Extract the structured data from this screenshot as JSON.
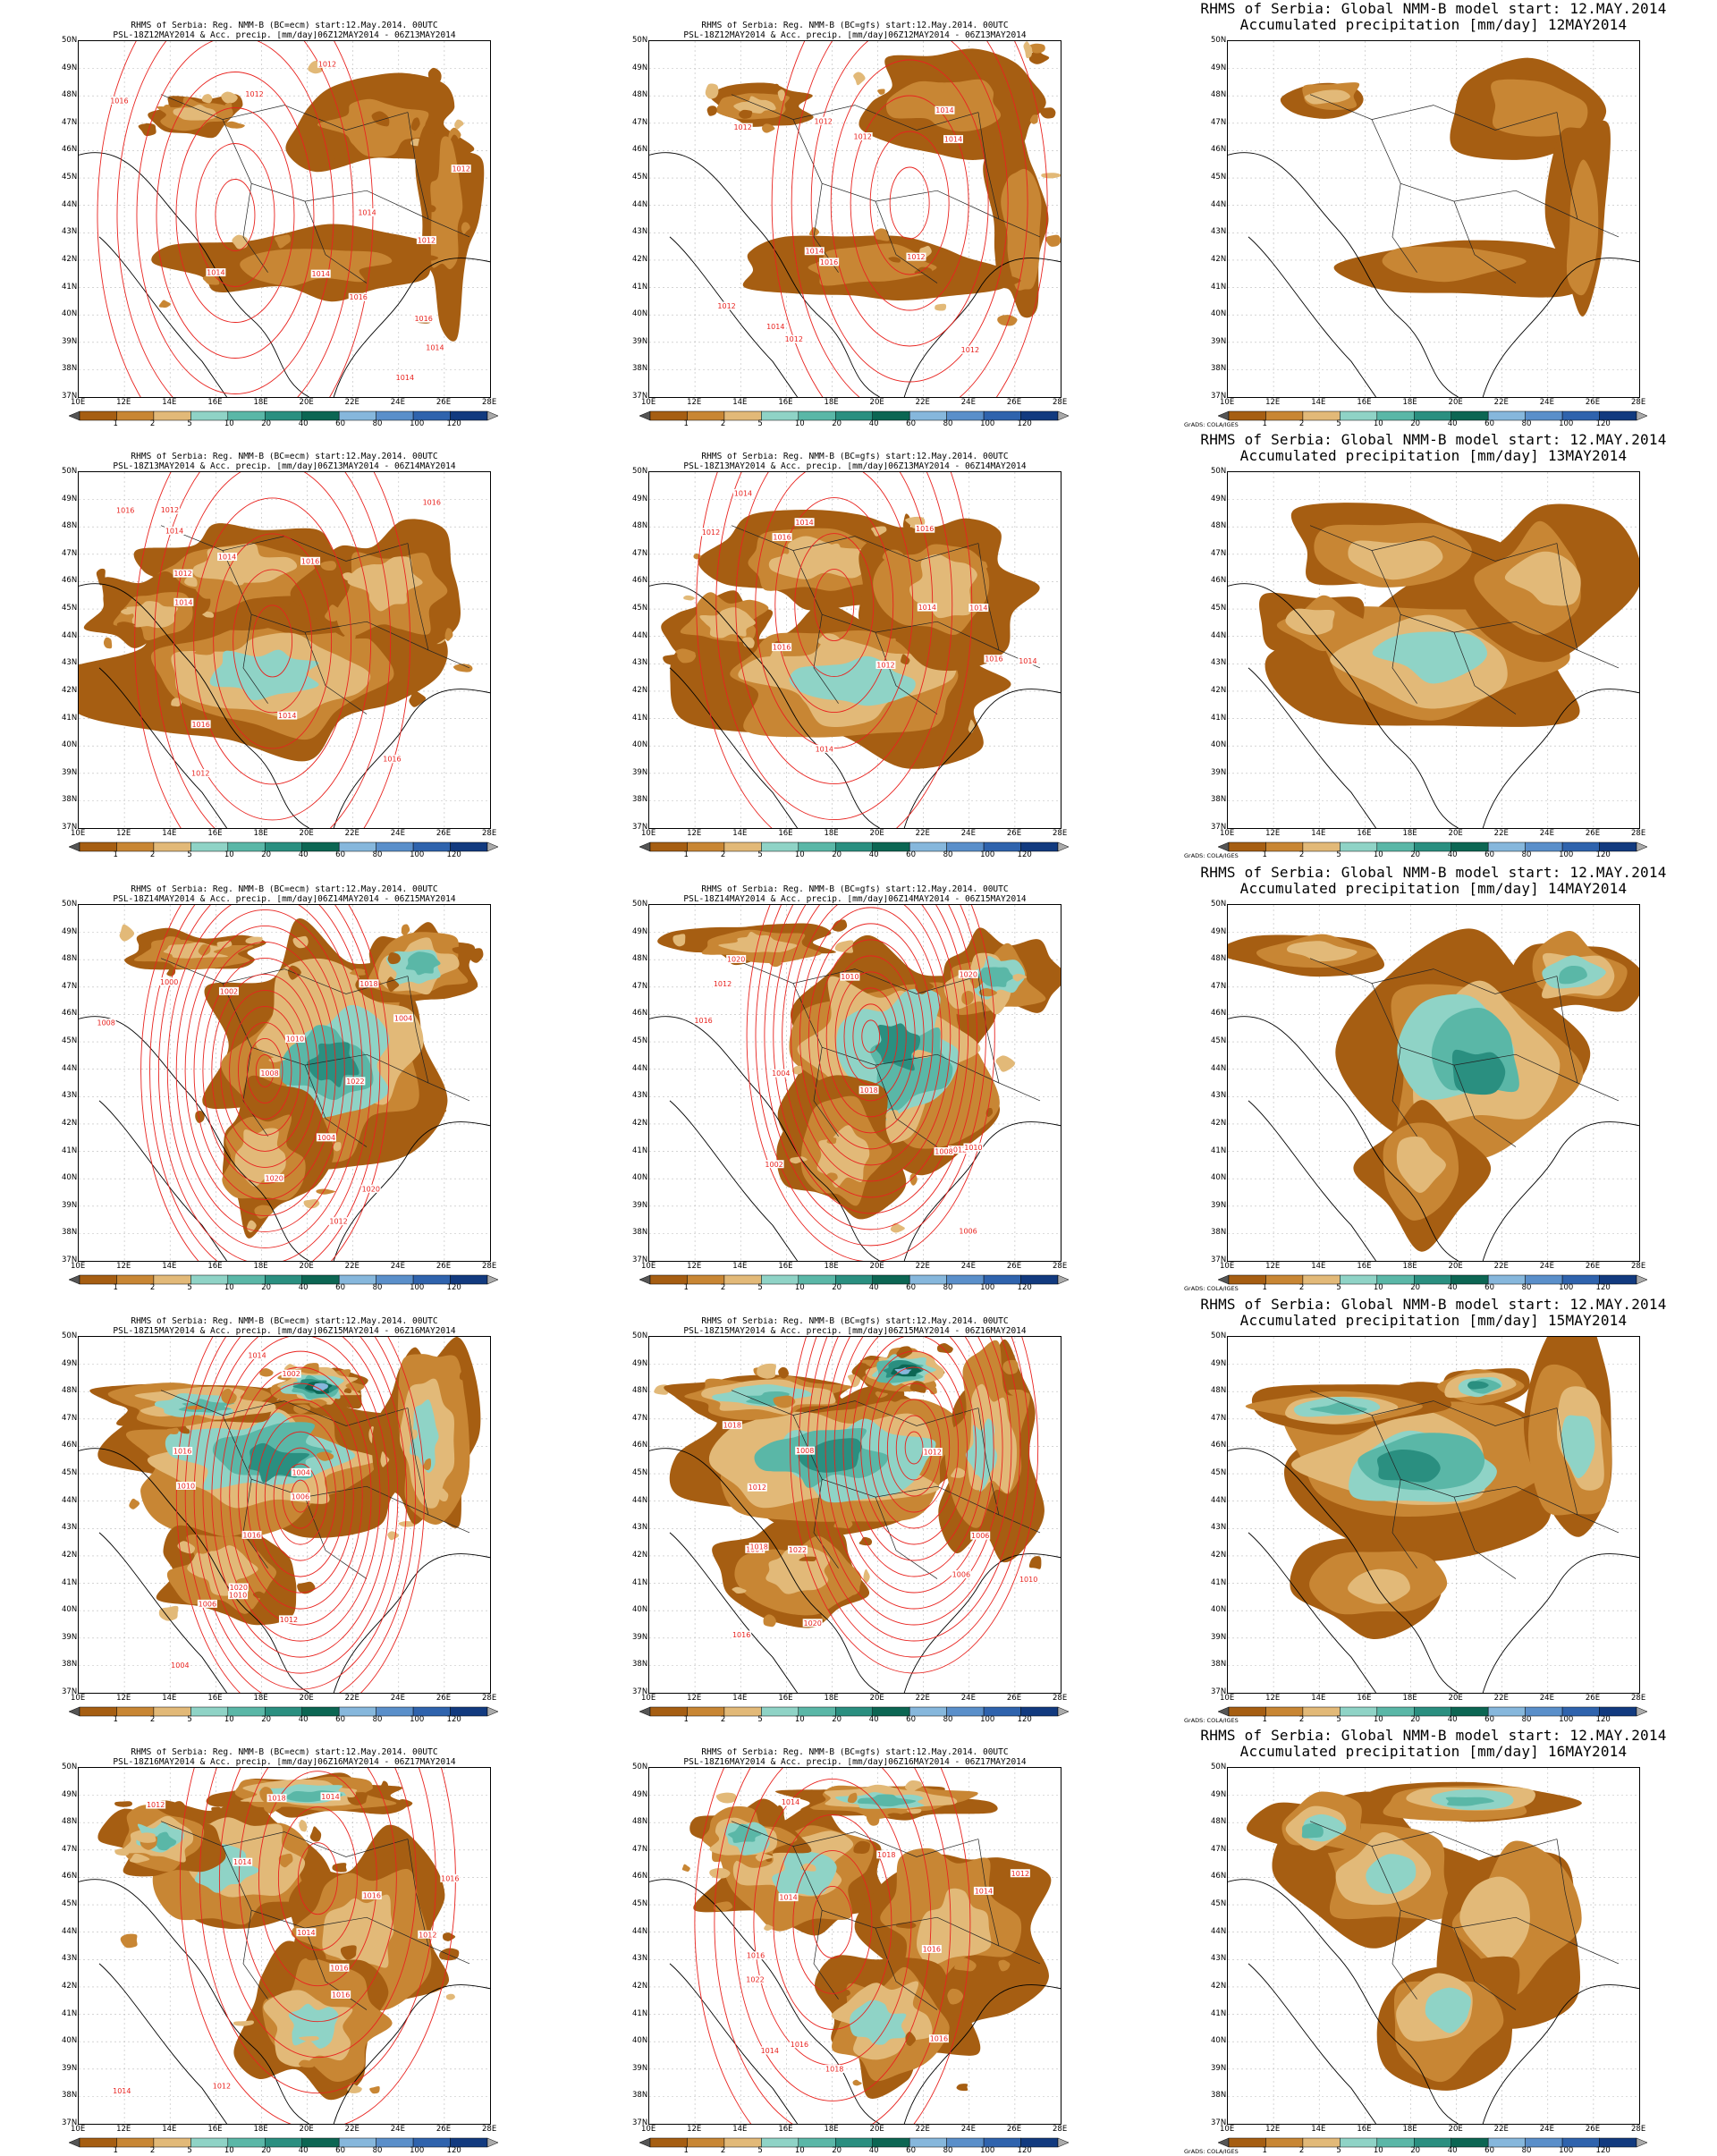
{
  "legend": {
    "colors": [
      "#a65e12",
      "#c88634",
      "#e2b978",
      "#8fd3c6",
      "#5ab7a7",
      "#2a8f80",
      "#0c6653",
      "#86b7dc",
      "#5a8fca",
      "#2f63ad",
      "#123a7f"
    ],
    "labels": [
      "1",
      "2",
      "5",
      "10",
      "20",
      "40",
      "60",
      "80",
      "100",
      "120"
    ]
  },
  "axes": {
    "lat_labels": [
      "50N",
      "49N",
      "48N",
      "47N",
      "46N",
      "45N",
      "44N",
      "43N",
      "42N",
      "41N",
      "40N",
      "39N",
      "38N",
      "37N"
    ],
    "lon_labels": [
      "10E",
      "12E",
      "14E",
      "16E",
      "18E",
      "20E",
      "22E",
      "24E",
      "26E",
      "28E"
    ]
  },
  "isobar_color": "#e8231f",
  "grads_note": "GrADS: COLA/IGES",
  "rows": [
    {
      "panels": [
        {
          "kind": "ecm",
          "line1": "RHMS of Serbia: Reg. NMM-B (BC=ecm) start:12.May.2014. 00UTC",
          "line2": "PSL-18Z12MAY2014 & Acc. precip. [mm/day]06Z12MAY2014 - 06Z13MAY2014",
          "labels": [
            "1012",
            "1012",
            "1016",
            "1014",
            "1014",
            "1014",
            "1016",
            "1012",
            "1016",
            "1014",
            "1014",
            "1012"
          ]
        },
        {
          "kind": "gfs",
          "line1": "RHMS of Serbia: Reg. NMM-B (BC=gfs) start:12.May.2014. 00UTC",
          "line2": "PSL-18Z12MAY2014 & Acc. precip. [mm/day]06Z12MAY2014 - 06Z13MAY2014",
          "labels": [
            "1012",
            "1014",
            "1016",
            "1014",
            "1012",
            "1012",
            "1014",
            "1012",
            "1014",
            "1012",
            "1012",
            "1012"
          ]
        },
        {
          "kind": "global",
          "line1": "RHMS of Serbia: Global NMM-B model   start: 12.MAY.2014",
          "line2": "Accumulated precipitation [mm/day]  12MAY2014",
          "labels": []
        }
      ]
    },
    {
      "panels": [
        {
          "kind": "ecm",
          "line1": "RHMS of Serbia: Reg. NMM-B (BC=ecm) start:12.May.2014. 00UTC",
          "line2": "PSL-18Z13MAY2014 & Acc. precip. [mm/day]06Z13MAY2014 - 06Z14MAY2014",
          "labels": [
            "1014",
            "1016",
            "1016",
            "1012",
            "1016",
            "1012",
            "1016",
            "1014",
            "1014",
            "1012",
            "1014",
            "1016"
          ]
        },
        {
          "kind": "gfs",
          "line1": "RHMS of Serbia: Reg. NMM-B (BC=gfs) start:12.May.2014. 00UTC",
          "line2": "PSL-18Z13MAY2014 & Acc. precip. [mm/day]06Z13MAY2014 - 06Z14MAY2014",
          "labels": [
            "1014",
            "1014",
            "1016",
            "1016",
            "1016",
            "1014",
            "1014",
            "1012",
            "1016",
            "1014",
            "1012",
            "1014"
          ]
        },
        {
          "kind": "global",
          "line1": "RHMS of Serbia: Global NMM-B model   start: 12.MAY.2014",
          "line2": "Accumulated precipitation [mm/day]  13MAY2014",
          "labels": []
        }
      ]
    },
    {
      "panels": [
        {
          "kind": "ecm",
          "line1": "RHMS of Serbia: Reg. NMM-B (BC=ecm) start:12.May.2014. 00UTC",
          "line2": "PSL-18Z14MAY2014 & Acc. precip. [mm/day]06Z14MAY2014 - 06Z15MAY2014",
          "labels": [
            "1008",
            "1004",
            "1002",
            "1000",
            "1022",
            "1018",
            "1020",
            "1012",
            "1010",
            "1020",
            "1004",
            "1008"
          ]
        },
        {
          "kind": "gfs",
          "line1": "RHMS of Serbia: Reg. NMM-B (BC=gfs) start:12.May.2014. 00UTC",
          "line2": "PSL-18Z14MAY2014 & Acc. precip. [mm/day]06Z14MAY2014 - 06Z15MAY2014",
          "labels": [
            "1012",
            "1010",
            "1008",
            "1006",
            "1004",
            "1020",
            "1018",
            "1016",
            "1012",
            "1020",
            "1010",
            "1002"
          ]
        },
        {
          "kind": "global",
          "line1": "RHMS of Serbia: Global NMM-B model   start: 12.MAY.2014",
          "line2": "Accumulated precipitation [mm/day]  14MAY2014",
          "labels": []
        }
      ]
    },
    {
      "panels": [
        {
          "kind": "ecm",
          "line1": "RHMS of Serbia: Reg. NMM-B (BC=ecm) start:12.May.2014. 00UTC",
          "line2": "PSL-18Z15MAY2014 & Acc. precip. [mm/day]06Z15MAY2014 - 06Z16MAY2014",
          "labels": [
            "1004",
            "1006",
            "1002",
            "1004",
            "1010",
            "1006",
            "1020",
            "1016",
            "1014",
            "1010",
            "1016",
            "1012"
          ]
        },
        {
          "kind": "gfs",
          "line1": "RHMS of Serbia: Reg. NMM-B (BC=gfs) start:12.May.2014. 00UTC",
          "line2": "PSL-18Z15MAY2014 & Acc. precip. [mm/day]06Z15MAY2014 - 06Z16MAY2014",
          "labels": [
            "1006",
            "1004",
            "1008",
            "1006",
            "1010",
            "1012",
            "1022",
            "1020",
            "1018",
            "1016",
            "1018",
            "1012"
          ]
        },
        {
          "kind": "global",
          "line1": "RHMS of Serbia: Global NMM-B model   start: 12.MAY.2014",
          "line2": "Accumulated precipitation [mm/day]  15MAY2014",
          "labels": []
        }
      ]
    },
    {
      "panels": [
        {
          "kind": "ecm",
          "line1": "RHMS of Serbia: Reg. NMM-B (BC=ecm) start:12.May.2014. 00UTC",
          "line2": "PSL-18Z16MAY2014 & Acc. precip. [mm/day]06Z16MAY2014 - 06Z17MAY2014",
          "labels": [
            "1014",
            "1016",
            "1012",
            "1014",
            "1012",
            "1016",
            "1014",
            "1012",
            "1016",
            "1016",
            "1018",
            "1014"
          ]
        },
        {
          "kind": "gfs",
          "line1": "RHMS of Serbia: Reg. NMM-B (BC=gfs) start:12.May.2014. 00UTC",
          "line2": "PSL-18Z16MAY2014 & Acc. precip. [mm/day]06Z16MAY2014 - 06Z17MAY2014",
          "labels": [
            "1014",
            "1022",
            "1018",
            "1016",
            "1014",
            "1012",
            "1016",
            "1014",
            "1016",
            "1014",
            "1018",
            "1016"
          ]
        },
        {
          "kind": "global",
          "line1": "RHMS of Serbia: Global NMM-B model   start: 12.MAY.2014",
          "line2": "Accumulated precipitation [mm/day]  16MAY2014",
          "labels": []
        }
      ]
    }
  ]
}
